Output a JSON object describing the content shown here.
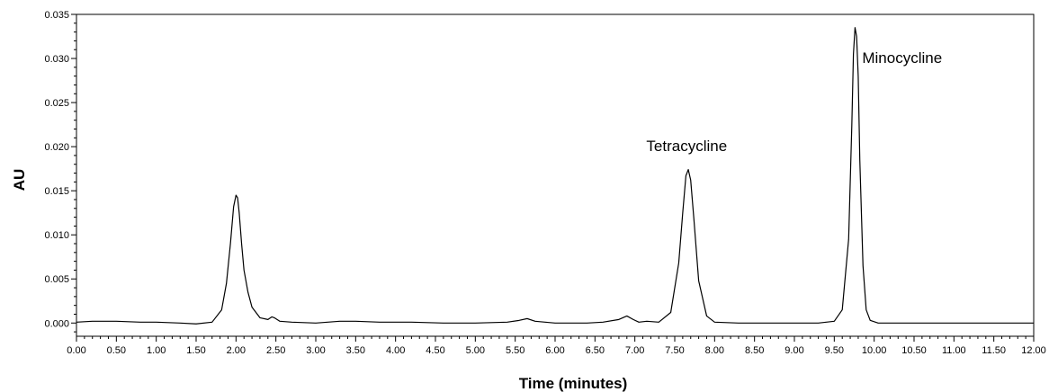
{
  "chart_data": {
    "type": "line",
    "title": "",
    "xlabel": "Time (minutes)",
    "ylabel": "AU",
    "xlim": [
      0,
      12
    ],
    "ylim": [
      -0.0015,
      0.035
    ],
    "grid": false,
    "x_ticks": [
      "0.00",
      "0.50",
      "1.00",
      "1.50",
      "2.00",
      "2.50",
      "3.00",
      "3.50",
      "4.00",
      "4.50",
      "5.00",
      "5.50",
      "6.00",
      "6.50",
      "7.00",
      "7.50",
      "8.00",
      "8.50",
      "9.00",
      "9.50",
      "10.00",
      "10.50",
      "11.00",
      "11.50",
      "12.00"
    ],
    "y_ticks": [
      "0.000",
      "0.005",
      "0.010",
      "0.015",
      "0.020",
      "0.025",
      "0.030",
      "0.035"
    ],
    "series": [
      {
        "x": [
          0.0,
          0.2,
          0.5,
          0.8,
          1.0,
          1.3,
          1.5,
          1.7,
          1.82,
          1.88,
          1.93,
          1.97,
          2.0,
          2.02,
          2.04,
          2.07,
          2.1,
          2.15,
          2.2,
          2.3,
          2.4,
          2.45,
          2.48,
          2.55,
          2.7,
          3.0,
          3.3,
          3.5,
          3.8,
          4.2,
          4.6,
          5.0,
          5.4,
          5.55,
          5.65,
          5.75,
          6.0,
          6.4,
          6.6,
          6.8,
          6.9,
          6.98,
          7.05,
          7.15,
          7.3,
          7.45,
          7.55,
          7.6,
          7.64,
          7.67,
          7.7,
          7.74,
          7.8,
          7.9,
          8.0,
          8.3,
          8.6,
          9.0,
          9.3,
          9.5,
          9.6,
          9.68,
          9.72,
          9.74,
          9.76,
          9.78,
          9.8,
          9.82,
          9.86,
          9.9,
          9.95,
          10.05,
          10.5,
          11.0,
          11.5,
          12.0
        ],
        "y": [
          0.0001,
          0.0002,
          0.0002,
          0.0001,
          0.0001,
          0.0,
          -0.0001,
          0.0001,
          0.0015,
          0.0045,
          0.009,
          0.0132,
          0.0145,
          0.0142,
          0.0125,
          0.009,
          0.006,
          0.0035,
          0.0018,
          0.0006,
          0.0004,
          0.0007,
          0.0006,
          0.0002,
          0.0001,
          0.0,
          0.0002,
          0.0002,
          0.0001,
          0.0001,
          0.0,
          0.0,
          0.0001,
          0.0003,
          0.0005,
          0.0002,
          0.0,
          0.0,
          0.0001,
          0.0004,
          0.0008,
          0.0004,
          0.0001,
          0.0002,
          0.0001,
          0.0012,
          0.0068,
          0.0125,
          0.0167,
          0.0174,
          0.0162,
          0.0118,
          0.0048,
          0.0008,
          0.0001,
          0.0,
          0.0,
          0.0,
          0.0,
          0.0002,
          0.0015,
          0.0095,
          0.0225,
          0.0305,
          0.0335,
          0.0325,
          0.028,
          0.0185,
          0.0065,
          0.0015,
          0.0003,
          0.0,
          0.0,
          0.0,
          0.0,
          0.0
        ]
      }
    ],
    "annotations": [
      {
        "text": "Tetracycline",
        "x": 7.65,
        "y": 0.0195
      },
      {
        "text": "Minocycline",
        "x": 9.85,
        "y": 0.0295
      }
    ]
  }
}
